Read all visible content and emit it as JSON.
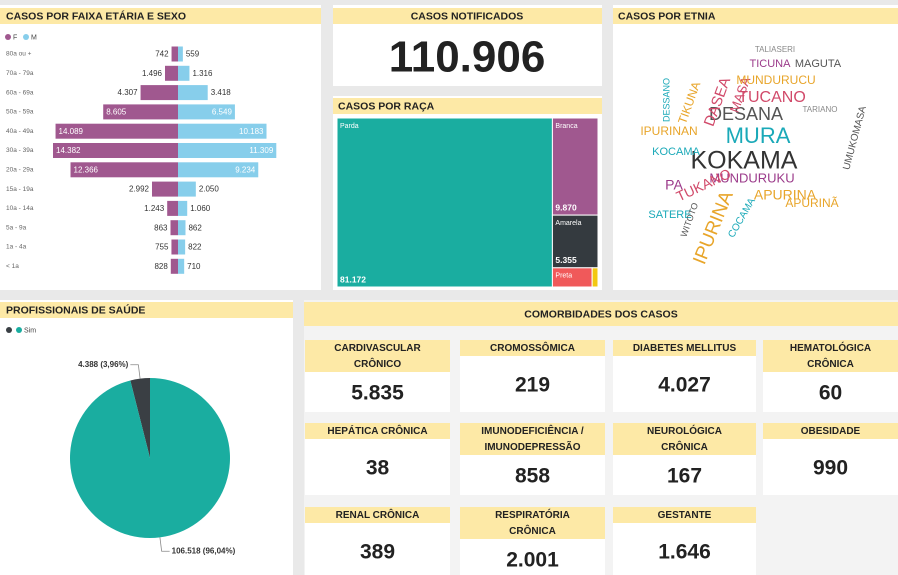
{
  "age_sex": {
    "type": "bar",
    "title": "CASOS POR FAIXA ETÁRIA E SEXO",
    "categories": [
      "80a ou +",
      "70a - 79a",
      "60a - 69a",
      "50a - 59a",
      "40a - 49a",
      "30a - 39a",
      "20a - 29a",
      "15a - 19a",
      "10a - 14a",
      "5a - 9a",
      "1a - 4a",
      "< 1a"
    ],
    "series": [
      {
        "name": "F",
        "color": "#a0588f",
        "values": [
          742,
          1496,
          4307,
          8605,
          14089,
          14382,
          12366,
          2992,
          1243,
          863,
          755,
          828
        ],
        "value_labels": [
          "742",
          "1.496",
          "4.307",
          "8.605",
          "14.089",
          "14.382",
          "12.366",
          "2.992",
          "1.243",
          "863",
          "755",
          "828"
        ]
      },
      {
        "name": "M",
        "color": "#87ceeb",
        "values": [
          559,
          1316,
          3418,
          6549,
          10183,
          11309,
          9234,
          2050,
          1060,
          862,
          822,
          710
        ],
        "value_labels": [
          "559",
          "1.316",
          "3.418",
          "6.549",
          "10.183",
          "11.309",
          "9.234",
          "2.050",
          "1.060",
          "862",
          "822",
          "710"
        ]
      }
    ]
  },
  "notified": {
    "title": "CASOS NOTIFICADOS",
    "value": "110.906"
  },
  "race": {
    "type": "treemap",
    "title": "CASOS POR RAÇA",
    "categories": [
      "Parda",
      "Branca",
      "Amarela",
      "Preta",
      null
    ],
    "values": [
      81172,
      9870,
      5355,
      1700,
      250
    ],
    "value_labels": [
      "81.172",
      "9.870",
      "5.355",
      null,
      null
    ],
    "colors": [
      "#1aada0",
      "#a0588f",
      "#343a3f",
      "#f0595a",
      "#f2c811"
    ]
  },
  "ethnicity": {
    "title": "CASOS POR ETNIA",
    "words": [
      "KOKAMA",
      "MURA",
      "DESANA",
      "TUCANO",
      "MUNDURUKU",
      "IPURINA",
      "APURINA",
      "TIKUNA",
      "DASEA",
      "MASA",
      "MUNDURUCU",
      "TICUNA",
      "MAGUTA",
      "KOCAMA",
      "TUKANO",
      "PA",
      "SATERE",
      "UMUKOMASA",
      "DESSANO",
      "IPURINAN",
      "COCAMA",
      "TARIANO",
      "TALIASERI",
      "WITOTO",
      "APURINÃ"
    ]
  },
  "health_workers": {
    "type": "pie",
    "title": "PROFISSIONAIS DE SAÚDE",
    "categories": [
      null,
      "Sim"
    ],
    "values": [
      4388,
      106518
    ],
    "value_labels": [
      "4.388 (3,96%)",
      "106.518 (96,04%)"
    ],
    "colors": [
      "#3a3f44",
      "#1aada0"
    ]
  },
  "comorbidities": {
    "title": "COMORBIDADES DOS CASOS",
    "items": [
      {
        "label": [
          "CARDIVASCULAR",
          "CRÔNICO"
        ],
        "value": "5.835"
      },
      {
        "label": [
          "CROMOSSÔMICA"
        ],
        "value": "219"
      },
      {
        "label": [
          "DIABETES MELLITUS"
        ],
        "value": "4.027"
      },
      {
        "label": [
          "HEMATOLÓGICA",
          "CRÔNICA"
        ],
        "value": "60"
      },
      {
        "label": [
          "HEPÁTICA CRÔNICA"
        ],
        "value": "38"
      },
      {
        "label": [
          "IMUNODEFICIÊNCIA /",
          "IMUNODEPRESSÃO"
        ],
        "value": "858"
      },
      {
        "label": [
          "NEUROLÓGICA",
          "CRÔNICA"
        ],
        "value": "167"
      },
      {
        "label": [
          "OBESIDADE"
        ],
        "value": "990"
      },
      {
        "label": [
          "RENAL CRÔNICA"
        ],
        "value": "389"
      },
      {
        "label": [
          "RESPIRATÓRIA",
          "CRÔNICA"
        ],
        "value": "2.001"
      },
      {
        "label": [
          "GESTANTE"
        ],
        "value": "1.646"
      }
    ]
  }
}
